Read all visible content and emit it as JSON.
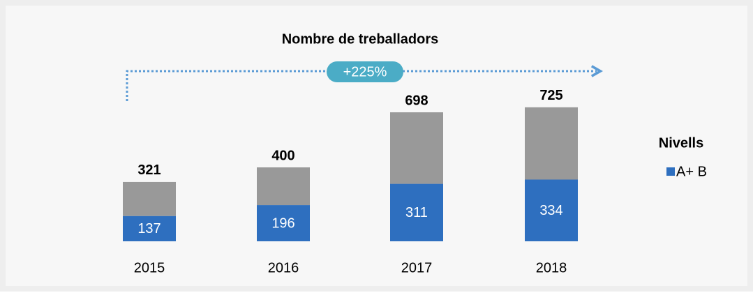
{
  "chart_data": {
    "type": "bar",
    "stacked": true,
    "title": "Nombre de treballadors",
    "annotation": "+225%",
    "legend_title": "Nivells",
    "categories": [
      "2015",
      "2016",
      "2017",
      "2018"
    ],
    "series": [
      {
        "name": "A+ B",
        "color": "#2e6fbf",
        "values": [
          137,
          196,
          311,
          334
        ]
      },
      {
        "color": "#999999",
        "values": [
          184,
          204,
          387,
          391
        ]
      }
    ],
    "totals": [
      321,
      400,
      698,
      725
    ]
  }
}
